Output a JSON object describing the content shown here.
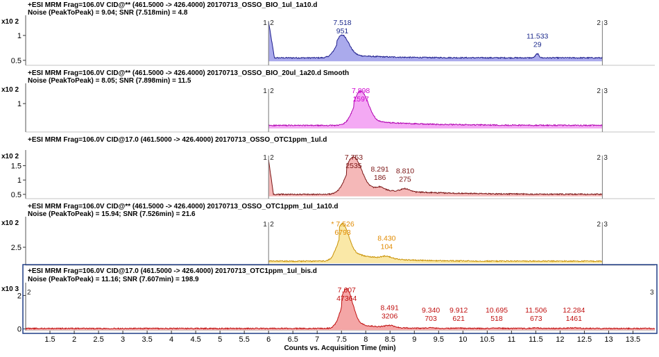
{
  "chart_data": [
    {
      "type": "area",
      "title": "+ESI MRM Frag=106.0V CID@** (461.5000 -> 426.4000) 20170713_OSSO_BIO_1ul_1a10.d",
      "subtitle": "Noise (PeakToPeak) = 9.04; SNR (7.518min) = 4.8",
      "magnitude": "x10 2",
      "yticks": [
        "1",
        "0.5"
      ],
      "ylim": [
        0.4,
        1.35
      ],
      "xlim": [
        1.0,
        13.95
      ],
      "markers": [
        "1",
        "2",
        "2",
        "3"
      ],
      "line_color": "#1c1c8c",
      "fill_color": "#8e8ee6",
      "label_color": "#1c2a8c",
      "peaks": [
        {
          "rt": "7.518",
          "area": "951"
        },
        {
          "rt": "11.533",
          "area": "29"
        }
      ]
    },
    {
      "type": "area",
      "title": "+ESI MRM Frag=106.0V CID@** (461.5000 -> 426.4000) 20170713_OSSO_BIO_20ul_1a20.d Smooth",
      "subtitle": "Noise (PeakToPeak) = 8.05; SNR (7.898min) = 11.5",
      "magnitude": "x10 2",
      "yticks": [
        "1"
      ],
      "ylim": [
        0.35,
        1.4
      ],
      "xlim": [
        1.0,
        13.95
      ],
      "markers": [
        "1",
        "2",
        "2",
        "3"
      ],
      "line_color": "#b000b0",
      "fill_color": "#f08cf0",
      "label_color": "#d000d0",
      "peaks": [
        {
          "rt": "7.898",
          "area": "1597"
        }
      ]
    },
    {
      "type": "area",
      "title": "+ESI MRM Frag=106.0V CID@17.0 (461.5000 -> 426.4000) 20170713_OSSO_OTC1ppm_1ul.d",
      "subtitle": "",
      "magnitude": "x10 2",
      "yticks": [
        "1.5",
        "1",
        "0.5"
      ],
      "ylim": [
        0.35,
        1.95
      ],
      "xlim": [
        1.0,
        13.95
      ],
      "markers": [
        "1",
        "2",
        "2",
        "3"
      ],
      "line_color": "#7a1414",
      "fill_color": "#f2a0a0",
      "label_color": "#7a1414",
      "peaks": [
        {
          "rt": "7.753",
          "area": "2535"
        },
        {
          "rt": "8.291",
          "area": "186"
        },
        {
          "rt": "8.810",
          "area": "275"
        }
      ]
    },
    {
      "type": "area",
      "title": "+ESI MRM Frag=106.0V CID@** (461.5000 -> 426.4000) 20170713_OSSO_OTC1ppm_1ul_1a10.d",
      "subtitle": "Noise (PeakToPeak) = 15.94; SNR (7.526min) = 21.6",
      "magnitude": "x10 2",
      "yticks": [
        "2.5"
      ],
      "ylim": [
        1.2,
        4.5
      ],
      "xlim": [
        1.0,
        13.95
      ],
      "markers": [
        "1",
        "2",
        "2",
        "3"
      ],
      "line_color": "#c89000",
      "fill_color": "#f8e08a",
      "label_color": "#e08a00",
      "peaks": [
        {
          "rt": "* 7.526",
          "area": "6793"
        },
        {
          "rt": "8.430",
          "area": "104"
        }
      ]
    },
    {
      "type": "area",
      "title": "+ESI MRM Frag=106.0V CID@17.0 (461.5000 -> 426.4000) 20170713_OTC1ppm_1ul_bis.d",
      "subtitle": "Noise (PeakToPeak) = 11.16; SNR (7.607min) = 198.9",
      "magnitude": "x10 3",
      "yticks": [
        "2",
        "0"
      ],
      "ylim": [
        -0.1,
        2.6
      ],
      "xlim": [
        1.0,
        13.95
      ],
      "markers": [
        "2",
        "3"
      ],
      "line_color": "#c01010",
      "fill_color": "#f08888",
      "label_color": "#c01010",
      "peaks": [
        {
          "rt": "7.607",
          "area": "47364"
        },
        {
          "rt": "8.491",
          "area": "3206"
        },
        {
          "rt": "9.340",
          "area": "703"
        },
        {
          "rt": "9.912",
          "area": "621"
        },
        {
          "rt": "10.695",
          "area": "518"
        },
        {
          "rt": "11.506",
          "area": "673"
        },
        {
          "rt": "12.284",
          "area": "1461"
        }
      ]
    }
  ],
  "x_axis": {
    "label": "Counts vs. Acquisition Time (min)",
    "ticks": [
      "1.5",
      "2",
      "2.5",
      "3",
      "3.5",
      "4",
      "4.5",
      "5",
      "5.5",
      "6",
      "6.5",
      "7",
      "7.5",
      "8",
      "8.5",
      "9",
      "9.5",
      "10",
      "10.5",
      "11",
      "11.5",
      "12",
      "12.5",
      "13",
      "13.5"
    ]
  }
}
